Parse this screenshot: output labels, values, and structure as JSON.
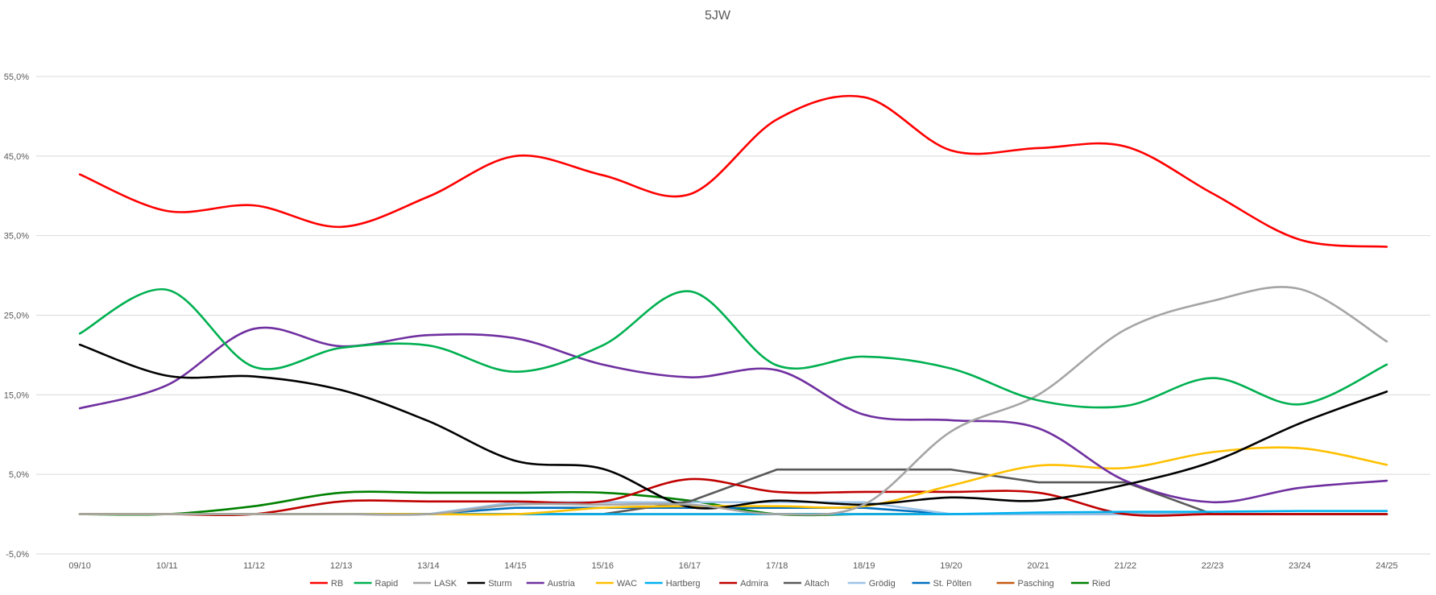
{
  "chart_data": {
    "type": "line",
    "title": "5JW",
    "xlabel": "",
    "ylabel": "",
    "ylim": [
      -5,
      55
    ],
    "yticks": [
      "-5,0%",
      "5,0%",
      "15,0%",
      "25,0%",
      "35,0%",
      "45,0%",
      "55,0%"
    ],
    "ytick_values": [
      -5,
      5,
      15,
      25,
      35,
      45,
      55
    ],
    "grid": true,
    "legend_position": "bottom",
    "categories": [
      "09/10",
      "10/11",
      "11/12",
      "12/13",
      "13/14",
      "14/15",
      "15/16",
      "16/17",
      "17/18",
      "18/19",
      "19/20",
      "20/21",
      "21/22",
      "22/23",
      "23/24",
      "24/25"
    ],
    "series": [
      {
        "name": "RB",
        "color": "#FF0000",
        "smooth": true,
        "values": [
          42.7,
          38.1,
          38.8,
          36.1,
          39.9,
          45.0,
          42.6,
          40.2,
          49.6,
          52.4,
          45.7,
          46.0,
          46.2,
          40.3,
          34.5,
          33.6
        ]
      },
      {
        "name": "Rapid",
        "color": "#00B050",
        "smooth": true,
        "values": [
          22.7,
          28.2,
          18.5,
          20.9,
          21.2,
          17.9,
          21.2,
          28.0,
          18.7,
          19.8,
          18.3,
          14.3,
          13.6,
          17.1,
          13.8,
          18.8
        ]
      },
      {
        "name": "LASK",
        "color": "#A5A5A5",
        "smooth": true,
        "values": [
          0,
          0,
          0,
          0,
          0,
          1.2,
          1.2,
          1.2,
          0,
          1.2,
          10.4,
          15.0,
          23.2,
          26.8,
          28.3,
          21.7
        ]
      },
      {
        "name": "Sturm",
        "color": "#000000",
        "smooth": true,
        "values": [
          21.3,
          17.4,
          17.3,
          15.6,
          11.7,
          6.7,
          5.7,
          0.9,
          1.7,
          1.2,
          2.1,
          1.7,
          3.7,
          6.6,
          11.4,
          15.4
        ]
      },
      {
        "name": "Austria",
        "color": "#7030A0",
        "smooth": true,
        "values": [
          13.3,
          16.2,
          23.3,
          21.1,
          22.5,
          22.1,
          18.8,
          17.2,
          18.1,
          12.5,
          11.8,
          10.8,
          4.2,
          1.5,
          3.3,
          4.2
        ]
      },
      {
        "name": "WAC",
        "color": "#FFC000",
        "smooth": true,
        "values": [
          0,
          0,
          0,
          0,
          0,
          0,
          0.8,
          1.0,
          1.0,
          1.0,
          3.6,
          6.1,
          5.8,
          7.8,
          8.3,
          6.2
        ]
      },
      {
        "name": "Hartberg",
        "color": "#00B0F0",
        "smooth": false,
        "values": [
          0,
          0,
          0,
          0,
          0,
          0,
          0,
          0,
          0,
          0,
          0,
          0.2,
          0.3,
          0.3,
          0.4,
          0.4
        ]
      },
      {
        "name": "Admira",
        "color": "#C00000",
        "smooth": true,
        "values": [
          0,
          0,
          0,
          1.6,
          1.6,
          1.6,
          1.6,
          4.4,
          2.8,
          2.8,
          2.8,
          2.7,
          0,
          0,
          0,
          0
        ]
      },
      {
        "name": "Altach",
        "color": "#595959",
        "smooth": false,
        "values": [
          0,
          0,
          0,
          0,
          0,
          0,
          0,
          1.6,
          5.6,
          5.6,
          5.6,
          4.0,
          4.0,
          0,
          0,
          0
        ]
      },
      {
        "name": "Grödig",
        "color": "#9DC3E6",
        "smooth": false,
        "values": [
          0,
          0,
          0,
          0,
          0,
          1.5,
          1.5,
          1.5,
          1.5,
          1.5,
          0,
          0,
          0,
          0,
          0,
          0
        ]
      },
      {
        "name": "St. Pölten",
        "color": "#0070C0",
        "smooth": false,
        "values": [
          0,
          0,
          0,
          0,
          0,
          0.8,
          0.8,
          0.8,
          0.8,
          0.8,
          0,
          0,
          0,
          0,
          0,
          0
        ]
      },
      {
        "name": "Pasching",
        "color": "#C55A11",
        "smooth": false,
        "values": [
          0,
          0,
          0,
          0,
          0,
          0,
          0,
          0,
          0,
          0,
          0,
          0,
          0,
          0,
          0,
          0
        ]
      },
      {
        "name": "Ried",
        "color": "#008000",
        "smooth": true,
        "values": [
          0,
          0,
          1.0,
          2.7,
          2.7,
          2.7,
          2.7,
          1.7,
          0,
          0,
          0,
          0,
          0,
          0,
          0,
          0
        ]
      }
    ]
  }
}
